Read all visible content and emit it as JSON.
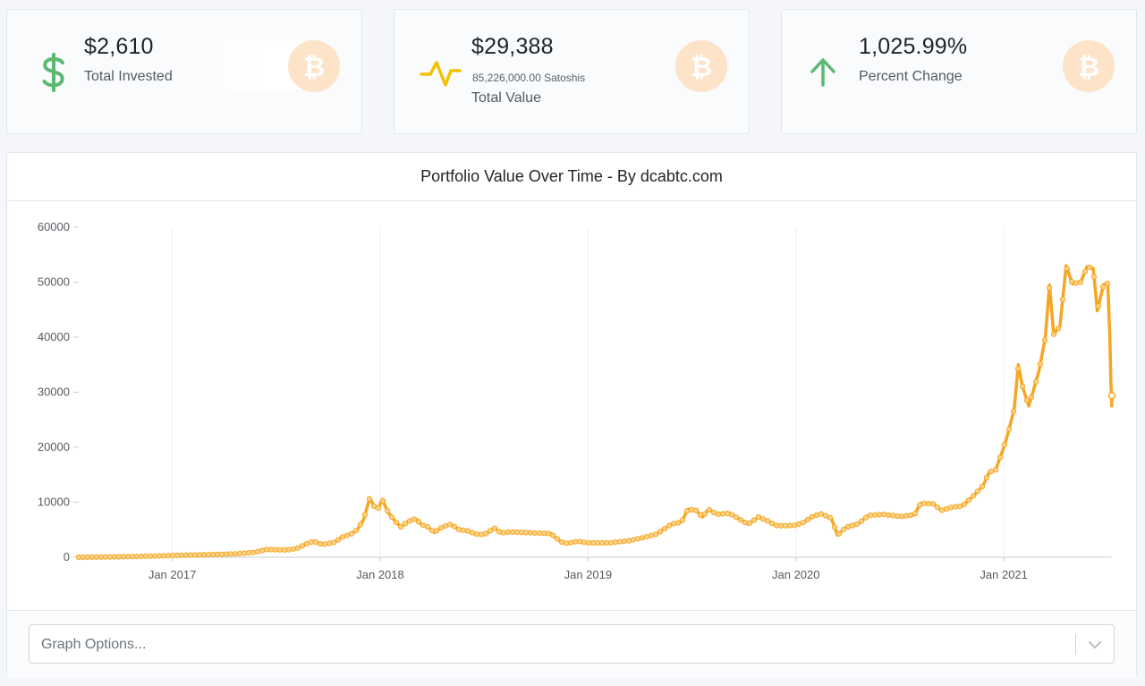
{
  "stats": {
    "invested": {
      "value": "$2,610",
      "label": "Total Invested",
      "icon": "dollar-icon",
      "color": "#5cb870"
    },
    "total_value": {
      "value": "$29,388",
      "sub": "85,226,000.00 Satoshis",
      "label": "Total Value",
      "icon": "activity-icon",
      "color": "#f2c200"
    },
    "percent": {
      "value": "1,025.99%",
      "label": "Percent Change",
      "icon": "arrow-up-icon",
      "color": "#5cb870"
    }
  },
  "btc_color": "#f7931a",
  "chart": {
    "header": "Portfolio Value Over Time - By dcabtc.com"
  },
  "graph_options": {
    "placeholder": "Graph Options..."
  },
  "chart_data": {
    "type": "line",
    "title": "Portfolio Value Over Time - By dcabtc.com",
    "xlabel": "",
    "ylabel": "",
    "ylim": [
      0,
      60000
    ],
    "yticks": [
      "0",
      "10000",
      "20000",
      "30000",
      "40000",
      "50000",
      "60000"
    ],
    "xticks": [
      "Jan 2017",
      "Jan 2018",
      "Jan 2019",
      "Jan 2020",
      "Jan 2021"
    ],
    "xtick_positions": [
      2017.0,
      2018.0,
      2019.0,
      2020.0,
      2021.0
    ],
    "xlim": [
      2016.55,
      2021.52
    ],
    "series": [
      {
        "name": "Portfolio Value",
        "color": "#f5a623",
        "points": [
          [
            2016.55,
            0
          ],
          [
            2016.7,
            50
          ],
          [
            2016.85,
            150
          ],
          [
            2017.0,
            300
          ],
          [
            2017.15,
            450
          ],
          [
            2017.3,
            600
          ],
          [
            2017.4,
            900
          ],
          [
            2017.45,
            1400
          ],
          [
            2017.55,
            1300
          ],
          [
            2017.6,
            1600
          ],
          [
            2017.65,
            2500
          ],
          [
            2017.68,
            2900
          ],
          [
            2017.72,
            2300
          ],
          [
            2017.78,
            2700
          ],
          [
            2017.82,
            3700
          ],
          [
            2017.86,
            4200
          ],
          [
            2017.89,
            5000
          ],
          [
            2017.92,
            6800
          ],
          [
            2017.95,
            10800
          ],
          [
            2017.97,
            9300
          ],
          [
            2017.99,
            8800
          ],
          [
            2018.01,
            10500
          ],
          [
            2018.04,
            8000
          ],
          [
            2018.08,
            6200
          ],
          [
            2018.1,
            5500
          ],
          [
            2018.13,
            6400
          ],
          [
            2018.17,
            7000
          ],
          [
            2018.2,
            5900
          ],
          [
            2018.23,
            5500
          ],
          [
            2018.26,
            4500
          ],
          [
            2018.3,
            5500
          ],
          [
            2018.34,
            6000
          ],
          [
            2018.38,
            5000
          ],
          [
            2018.42,
            4800
          ],
          [
            2018.46,
            4200
          ],
          [
            2018.5,
            4100
          ],
          [
            2018.55,
            5300
          ],
          [
            2018.58,
            4400
          ],
          [
            2018.62,
            4600
          ],
          [
            2018.68,
            4500
          ],
          [
            2018.75,
            4400
          ],
          [
            2018.82,
            4300
          ],
          [
            2018.87,
            2800
          ],
          [
            2018.9,
            2500
          ],
          [
            2018.95,
            2900
          ],
          [
            2019.0,
            2600
          ],
          [
            2019.1,
            2600
          ],
          [
            2019.2,
            3000
          ],
          [
            2019.28,
            3700
          ],
          [
            2019.33,
            4200
          ],
          [
            2019.4,
            6000
          ],
          [
            2019.45,
            6400
          ],
          [
            2019.48,
            8700
          ],
          [
            2019.52,
            8500
          ],
          [
            2019.55,
            7300
          ],
          [
            2019.58,
            8700
          ],
          [
            2019.62,
            7800
          ],
          [
            2019.68,
            8000
          ],
          [
            2019.72,
            7100
          ],
          [
            2019.77,
            6000
          ],
          [
            2019.82,
            7300
          ],
          [
            2019.87,
            6500
          ],
          [
            2019.9,
            5800
          ],
          [
            2019.94,
            5700
          ],
          [
            2020.0,
            5800
          ],
          [
            2020.04,
            6400
          ],
          [
            2020.08,
            7400
          ],
          [
            2020.12,
            7900
          ],
          [
            2020.17,
            7100
          ],
          [
            2020.2,
            4000
          ],
          [
            2020.24,
            5400
          ],
          [
            2020.3,
            6100
          ],
          [
            2020.35,
            7600
          ],
          [
            2020.42,
            7800
          ],
          [
            2020.5,
            7400
          ],
          [
            2020.57,
            7700
          ],
          [
            2020.6,
            9800
          ],
          [
            2020.66,
            9700
          ],
          [
            2020.7,
            8500
          ],
          [
            2020.75,
            9100
          ],
          [
            2020.8,
            9300
          ],
          [
            2020.85,
            11000
          ],
          [
            2020.9,
            13000
          ],
          [
            2020.93,
            15500
          ],
          [
            2020.96,
            15800
          ],
          [
            2021.0,
            20000
          ],
          [
            2021.02,
            22500
          ],
          [
            2021.05,
            27000
          ],
          [
            2021.07,
            35000
          ],
          [
            2021.09,
            31000
          ],
          [
            2021.12,
            27500
          ],
          [
            2021.14,
            30000
          ],
          [
            2021.17,
            34000
          ],
          [
            2021.2,
            40000
          ],
          [
            2021.22,
            49500
          ],
          [
            2021.24,
            40500
          ],
          [
            2021.27,
            42000
          ],
          [
            2021.3,
            53000
          ],
          [
            2021.33,
            49700
          ],
          [
            2021.37,
            50000
          ],
          [
            2021.4,
            52800
          ],
          [
            2021.43,
            52500
          ],
          [
            2021.45,
            44800
          ],
          [
            2021.48,
            49600
          ],
          [
            2021.5,
            49800
          ],
          [
            2021.51,
            40000
          ],
          [
            2021.515,
            32000
          ],
          [
            2021.517,
            30000
          ],
          [
            2021.518,
            29800
          ],
          [
            2021.519,
            27500
          ],
          [
            2021.5195,
            29900
          ],
          [
            2021.52,
            29388
          ]
        ]
      }
    ]
  }
}
